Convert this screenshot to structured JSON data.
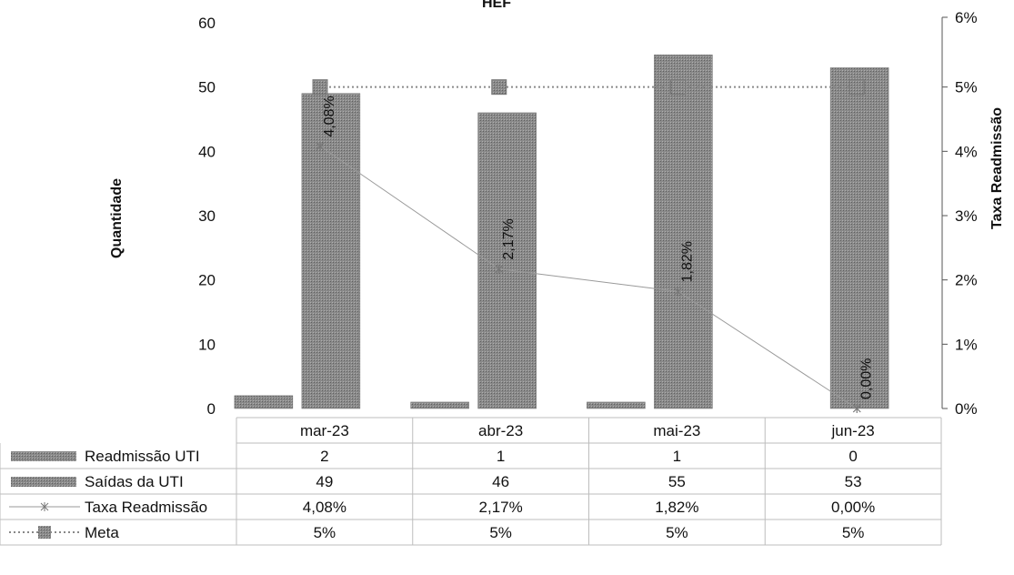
{
  "chart_data": {
    "type": "bar",
    "title": "HEF",
    "categories": [
      "mar-23",
      "abr-23",
      "mai-23",
      "jun-23"
    ],
    "ylabel": "Quantidade",
    "y2label": "Taxa Readmissão",
    "ylim": [
      0,
      60
    ],
    "y2lim": [
      0,
      6
    ],
    "y_ticks": [
      "0",
      "10",
      "20",
      "30",
      "40",
      "50",
      "60"
    ],
    "y2_ticks": [
      "0%",
      "1%",
      "2%",
      "3%",
      "4%",
      "5%",
      "6%"
    ],
    "series": [
      {
        "name": "Readmissão UTI",
        "kind": "bar",
        "axis": "left",
        "values": [
          2,
          1,
          1,
          0
        ],
        "labels": [
          "2",
          "1",
          "1",
          "0"
        ],
        "color": "#8c8c8c"
      },
      {
        "name": "Saídas da UTI",
        "kind": "bar",
        "axis": "left",
        "values": [
          49,
          46,
          55,
          53
        ],
        "labels": [
          "49",
          "46",
          "55",
          "53"
        ],
        "color": "#7d7d7d"
      },
      {
        "name": "Taxa Readmissão",
        "kind": "line",
        "axis": "right",
        "marker": "asterisk",
        "values": [
          4.08,
          2.17,
          1.82,
          0.0
        ],
        "labels": [
          "4,08%",
          "2,17%",
          "1,82%",
          "0,00%"
        ],
        "color": "#9a9a9a"
      },
      {
        "name": "Meta",
        "kind": "line",
        "axis": "right",
        "marker": "square",
        "dashed": true,
        "values": [
          5,
          5,
          5,
          5
        ],
        "labels": [
          "5%",
          "5%",
          "5%",
          "5%"
        ],
        "color": "#8a8a8a"
      }
    ],
    "data_table": true,
    "grid": false,
    "legend": "data-table"
  }
}
